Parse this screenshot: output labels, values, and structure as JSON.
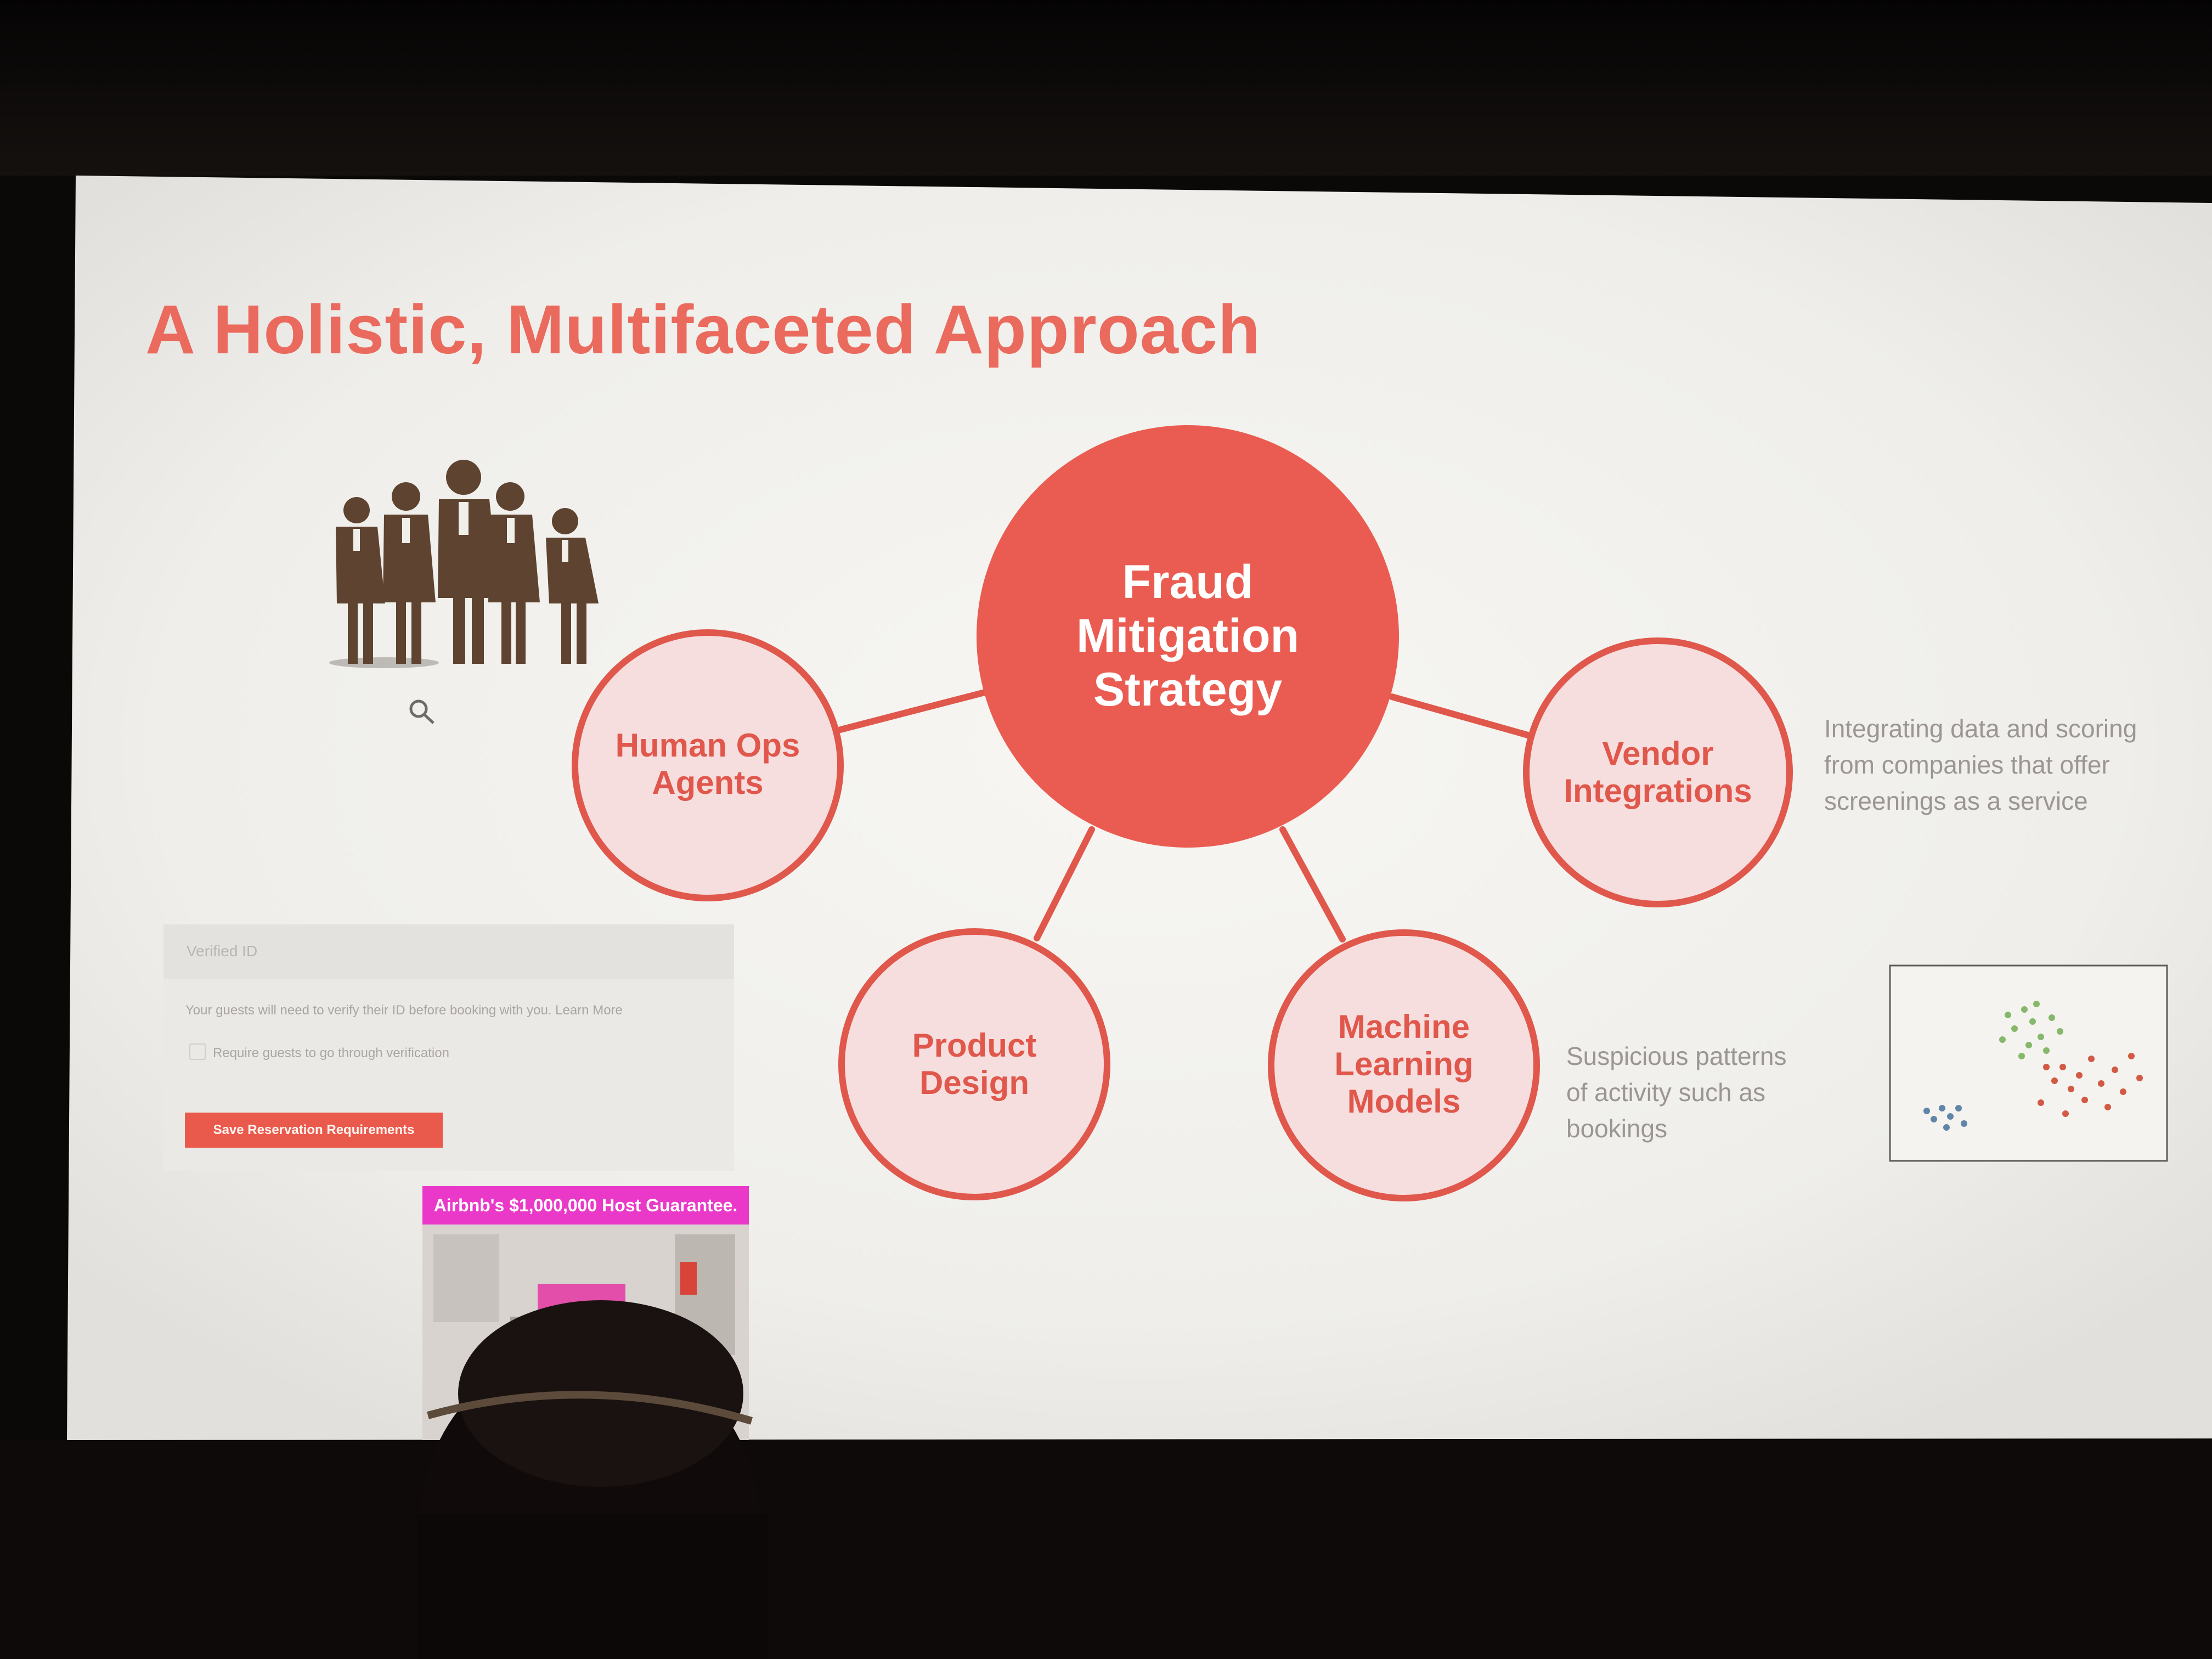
{
  "slide": {
    "title": "A Holistic, Multifaceted Approach",
    "center": {
      "line1": "Fraud",
      "line2": "Mitigation",
      "line3": "Strategy"
    },
    "nodes": {
      "human_ops": {
        "line1": "Human Ops",
        "line2": "Agents"
      },
      "product_design": {
        "line1": "Product",
        "line2": "Design"
      },
      "machine_learning": {
        "line1": "Machine",
        "line2": "Learning",
        "line3": "Models"
      },
      "vendor": {
        "line1": "Vendor",
        "line2": "Integrations"
      }
    },
    "vendor_note": {
      "line1": "Integrating data and scoring",
      "line2": "from companies that offer",
      "line3": "screenings as a service"
    },
    "ml_note": {
      "line1": "Suspicious patterns",
      "line2": "of activity such as",
      "line3": "bookings"
    },
    "verified_id_panel": {
      "title": "Verified ID",
      "description": "Your guests will need to verify their ID before booking with you. Learn More",
      "checkbox_label": "Require guests to go through verification",
      "button_label": "Save Reservation Requirements"
    },
    "host_guarantee": "Airbnb's $1,000,000 Host Guarantee."
  },
  "colors": {
    "accent": "#ea5a4c",
    "node_fill": "#f7dede",
    "node_border": "#e0574c",
    "slide_bg": "#efeeea",
    "note_text": "#9b9693",
    "guarantee_banner": "#ea39c8"
  },
  "icons": [
    "business-people-silhouette-icon",
    "cursor-hand-icon",
    "scatter-plot-icon",
    "room-photo-image"
  ]
}
